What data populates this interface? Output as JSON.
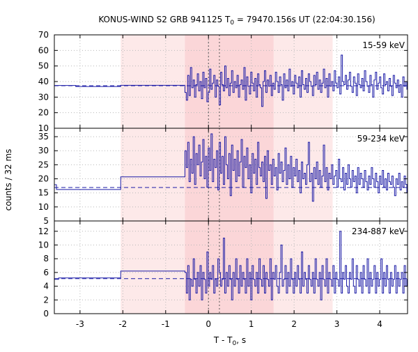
{
  "chart_data": {
    "type": "line",
    "title_main": "KONUS-WIND S2 GRB 941125 T",
    "title_sub": "0",
    "title_rest": " = 79470.156s UT (22:04:30.156)",
    "xlabel_main": "T - T",
    "xlabel_sub": "0",
    "xlabel_rest": ", s",
    "ylabel": "counts / 32 ms",
    "xlim": [
      -3.6,
      4.65
    ],
    "x_ticks": [
      -3,
      -2,
      -1,
      0,
      1,
      2,
      3,
      4
    ],
    "x_tick_labels": [
      "-3",
      "-2",
      "-1",
      "0",
      "1",
      "2",
      "3",
      "4"
    ],
    "grid": true,
    "shaded_regions": [
      {
        "x0": -2.05,
        "x1": 2.9,
        "color": "#fde9e9"
      },
      {
        "x0": -0.55,
        "x1": 1.52,
        "color": "#fbd6d8"
      }
    ],
    "vertical_markers": [
      0.0,
      0.256
    ],
    "line_color": "#1a1aa6",
    "panels": [
      {
        "band": "15-59 keV",
        "ylim": [
          10,
          70
        ],
        "y_ticks": [
          10,
          20,
          30,
          40,
          50,
          60,
          70
        ],
        "y_tick_labels": [
          "10",
          "20",
          "30",
          "40",
          "50",
          "60",
          "70"
        ],
        "background": 37.3,
        "steps": [
          {
            "x": -3.6,
            "y": 37.5
          },
          {
            "x": -3.1,
            "y": 36.8
          },
          {
            "x": -2.05,
            "y": 37.6
          },
          {
            "x": -0.55,
            "y": 37.8
          }
        ],
        "fine_x0": -0.55,
        "fine_dt": 0.032,
        "fine_values": [
          33,
          28,
          44,
          31,
          49,
          36,
          41,
          30,
          38,
          45,
          34,
          40,
          29,
          46,
          36,
          42,
          27,
          33,
          48,
          35,
          39,
          44,
          30,
          41,
          37,
          25,
          46,
          38,
          34,
          50,
          36,
          42,
          31,
          39,
          47,
          33,
          40,
          36,
          44,
          30,
          38,
          41,
          35,
          49,
          28,
          43,
          37,
          32,
          46,
          39,
          34,
          42,
          30,
          45,
          38,
          36,
          24,
          40,
          47,
          33,
          41,
          37,
          44,
          31,
          39,
          35,
          46,
          40,
          33,
          43,
          38,
          28,
          45,
          36,
          41,
          34,
          48,
          37,
          40,
          32,
          44,
          39,
          36,
          43,
          30,
          47,
          38,
          35,
          42,
          33,
          45,
          40,
          37,
          31,
          44,
          38,
          46,
          35,
          41,
          33,
          39,
          48,
          36,
          42,
          30,
          45,
          37,
          40,
          34,
          47,
          39,
          36,
          43,
          32,
          57,
          40,
          38,
          44,
          35,
          41,
          46,
          37,
          33,
          43,
          39,
          31,
          45,
          38,
          36,
          42,
          34,
          47,
          40,
          37,
          33,
          44,
          38,
          30,
          41,
          46,
          35,
          39,
          43,
          36,
          32,
          45,
          38,
          40,
          34,
          42,
          37,
          31,
          44,
          39,
          36,
          41,
          33,
          38,
          30,
          43,
          37,
          40,
          35,
          39,
          34,
          36,
          38,
          41,
          33,
          37,
          40,
          36,
          39
        ]
      },
      {
        "band": "59-234 keV",
        "ylim": [
          5,
          38
        ],
        "y_ticks": [
          5,
          10,
          15,
          20,
          25,
          30,
          35
        ],
        "y_tick_labels": [
          "5",
          "10",
          "15",
          "20",
          "25",
          "30",
          "35"
        ],
        "background": 16.9,
        "steps": [
          {
            "x": -3.6,
            "y": 17.9
          },
          {
            "x": -3.55,
            "y": 16.2
          },
          {
            "x": -2.05,
            "y": 20.7
          },
          {
            "x": -0.55,
            "y": 20.7
          }
        ],
        "fine_x0": -0.55,
        "fine_dt": 0.032,
        "fine_values": [
          30,
          24,
          33,
          19,
          27,
          22,
          35,
          18,
          29,
          25,
          32,
          21,
          26,
          34,
          20,
          28,
          17,
          31,
          23,
          36,
          19,
          27,
          24,
          30,
          16,
          33,
          22,
          28,
          18,
          35,
          25,
          20,
          29,
          14,
          32,
          23,
          27,
          19,
          30,
          21,
          26,
          34,
          17,
          28,
          24,
          31,
          20,
          25,
          15,
          29,
          22,
          27,
          18,
          33,
          24,
          21,
          26,
          19,
          28,
          13,
          30,
          23,
          25,
          18,
          27,
          21,
          24,
          16,
          29,
          22,
          26,
          19,
          23,
          31,
          18,
          25,
          20,
          28,
          17,
          24,
          21,
          27,
          19,
          23,
          15,
          26,
          20,
          22,
          18,
          25,
          33,
          19,
          22,
          12,
          24,
          20,
          26,
          18,
          23,
          17,
          21,
          32,
          19,
          24,
          16,
          22,
          20,
          25,
          18,
          21,
          23,
          17,
          27,
          20,
          19,
          24,
          16,
          22,
          18,
          25,
          20,
          17,
          23,
          19,
          21,
          15,
          24,
          18,
          22,
          20,
          17,
          23,
          19,
          16,
          21,
          18,
          24,
          20,
          17,
          22,
          19,
          15,
          21,
          18,
          23,
          17,
          20,
          16,
          22,
          19,
          18,
          21,
          17,
          14,
          20,
          18,
          22,
          16,
          19,
          17,
          21,
          18,
          15,
          20,
          17,
          19,
          16,
          18
        ]
      },
      {
        "band": "234-887 keV",
        "ylim": [
          0,
          13.5
        ],
        "y_ticks": [
          0,
          2,
          4,
          6,
          8,
          10,
          12
        ],
        "y_tick_labels": [
          "0",
          "2",
          "4",
          "6",
          "8",
          "10",
          "12"
        ],
        "background": 5.1,
        "steps": [
          {
            "x": -3.6,
            "y": 5.0
          },
          {
            "x": -3.5,
            "y": 5.2
          },
          {
            "x": -2.05,
            "y": 6.2
          },
          {
            "x": -0.55,
            "y": 6.2
          }
        ],
        "fine_x0": -0.55,
        "fine_dt": 0.032,
        "fine_values": [
          6,
          3,
          7,
          2,
          5,
          4,
          8,
          5,
          3,
          6,
          4,
          7,
          2,
          6,
          5,
          3,
          9,
          4,
          6,
          5,
          7,
          3,
          5,
          4,
          8,
          6,
          4,
          5,
          11,
          3,
          6,
          4,
          7,
          5,
          2,
          6,
          4,
          8,
          5,
          3,
          7,
          4,
          6,
          5,
          3,
          8,
          4,
          6,
          2,
          7,
          5,
          4,
          6,
          3,
          8,
          5,
          4,
          7,
          3,
          6,
          5,
          4,
          8,
          2,
          6,
          5,
          7,
          4,
          3,
          6,
          10,
          4,
          5,
          7,
          3,
          6,
          4,
          8,
          5,
          3,
          6,
          4,
          7,
          5,
          3,
          9,
          4,
          6,
          5,
          3,
          7,
          5,
          4,
          6,
          3,
          8,
          5,
          4,
          6,
          2,
          7,
          5,
          4,
          8,
          3,
          6,
          5,
          4,
          7,
          3,
          6,
          5,
          4,
          12,
          3,
          6,
          5,
          7,
          4,
          3,
          6,
          5,
          8,
          4,
          3,
          7,
          5,
          4,
          6,
          3,
          7,
          5,
          4,
          8,
          3,
          6,
          4,
          5,
          7,
          3,
          6,
          4,
          5,
          8,
          3,
          6,
          4,
          7,
          5,
          3,
          6,
          4,
          5,
          7,
          3,
          6,
          4,
          5,
          6,
          3,
          7,
          4,
          5,
          6,
          3,
          5,
          4,
          6,
          5,
          4,
          5,
          6
        ]
      }
    ]
  }
}
